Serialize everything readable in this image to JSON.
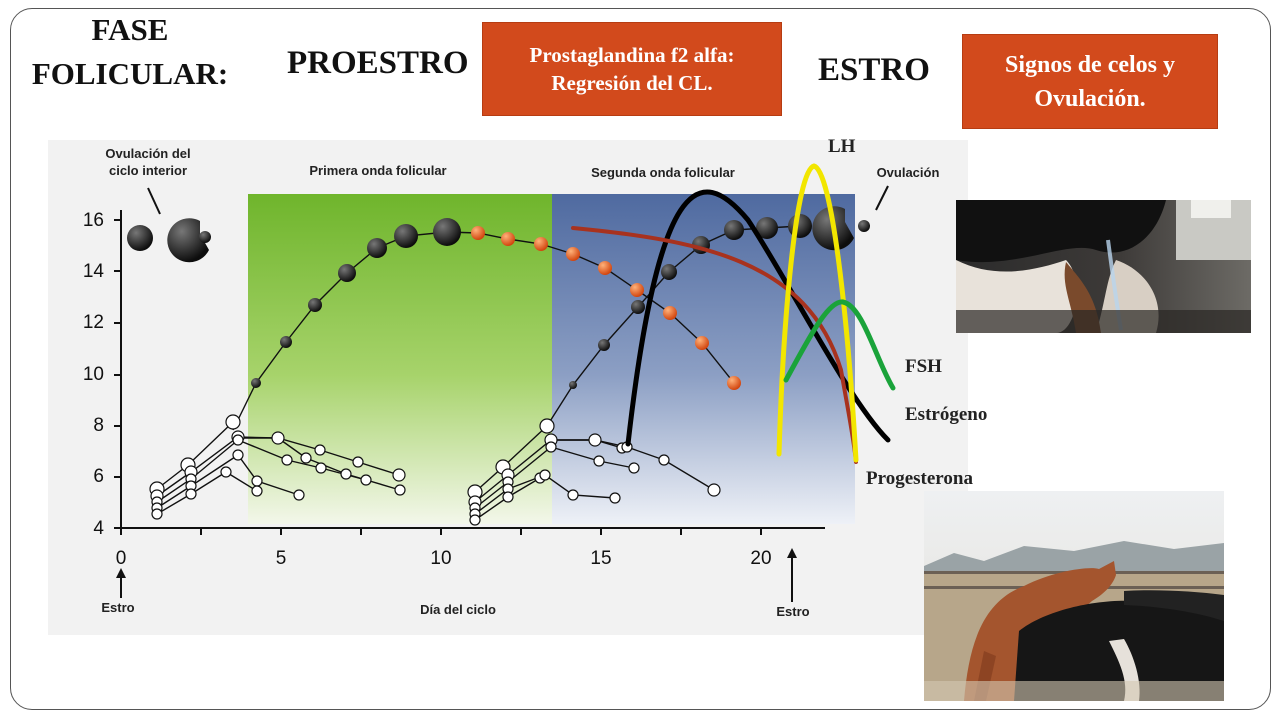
{
  "slide": {
    "phase_title": "FASE FOLICULAR:",
    "proestro": "PROESTRO",
    "estro": "ESTRO",
    "box_prostaglandin": "Prostaglandina f2 alfa: Regresión del CL.",
    "box_signs": "Signos de celos y Ovulación."
  },
  "hormone_labels": {
    "lh": "LH",
    "fsh": "FSH",
    "estrogen": "Estrógeno",
    "progesterone": "Progesterona"
  },
  "diagram": {
    "label_prev_ovulation_line1": "Ovulación del",
    "label_prev_ovulation_line2": "ciclo interior",
    "label_first_wave": "Primera onda folicular",
    "label_second_wave": "Segunda onda folicular",
    "label_ovulation": "Ovulación",
    "x_axis_label": "Día del ciclo",
    "arrow_label_left": "Estro",
    "arrow_label_right": "Estro",
    "y_ticks": [
      "4",
      "6",
      "8",
      "10",
      "12",
      "14",
      "16"
    ],
    "x_ticks": [
      "0",
      "5",
      "10",
      "15",
      "20"
    ]
  },
  "colors": {
    "accent_box": "#d24a1c",
    "lh_curve": "#f2e600",
    "fsh_curve": "#1aa33a",
    "estrogen_curve": "#000000",
    "progesterone_curve": "#a8321e",
    "first_wave_bg": "#8dc63f",
    "second_wave_bg": "#6e84b0"
  }
}
